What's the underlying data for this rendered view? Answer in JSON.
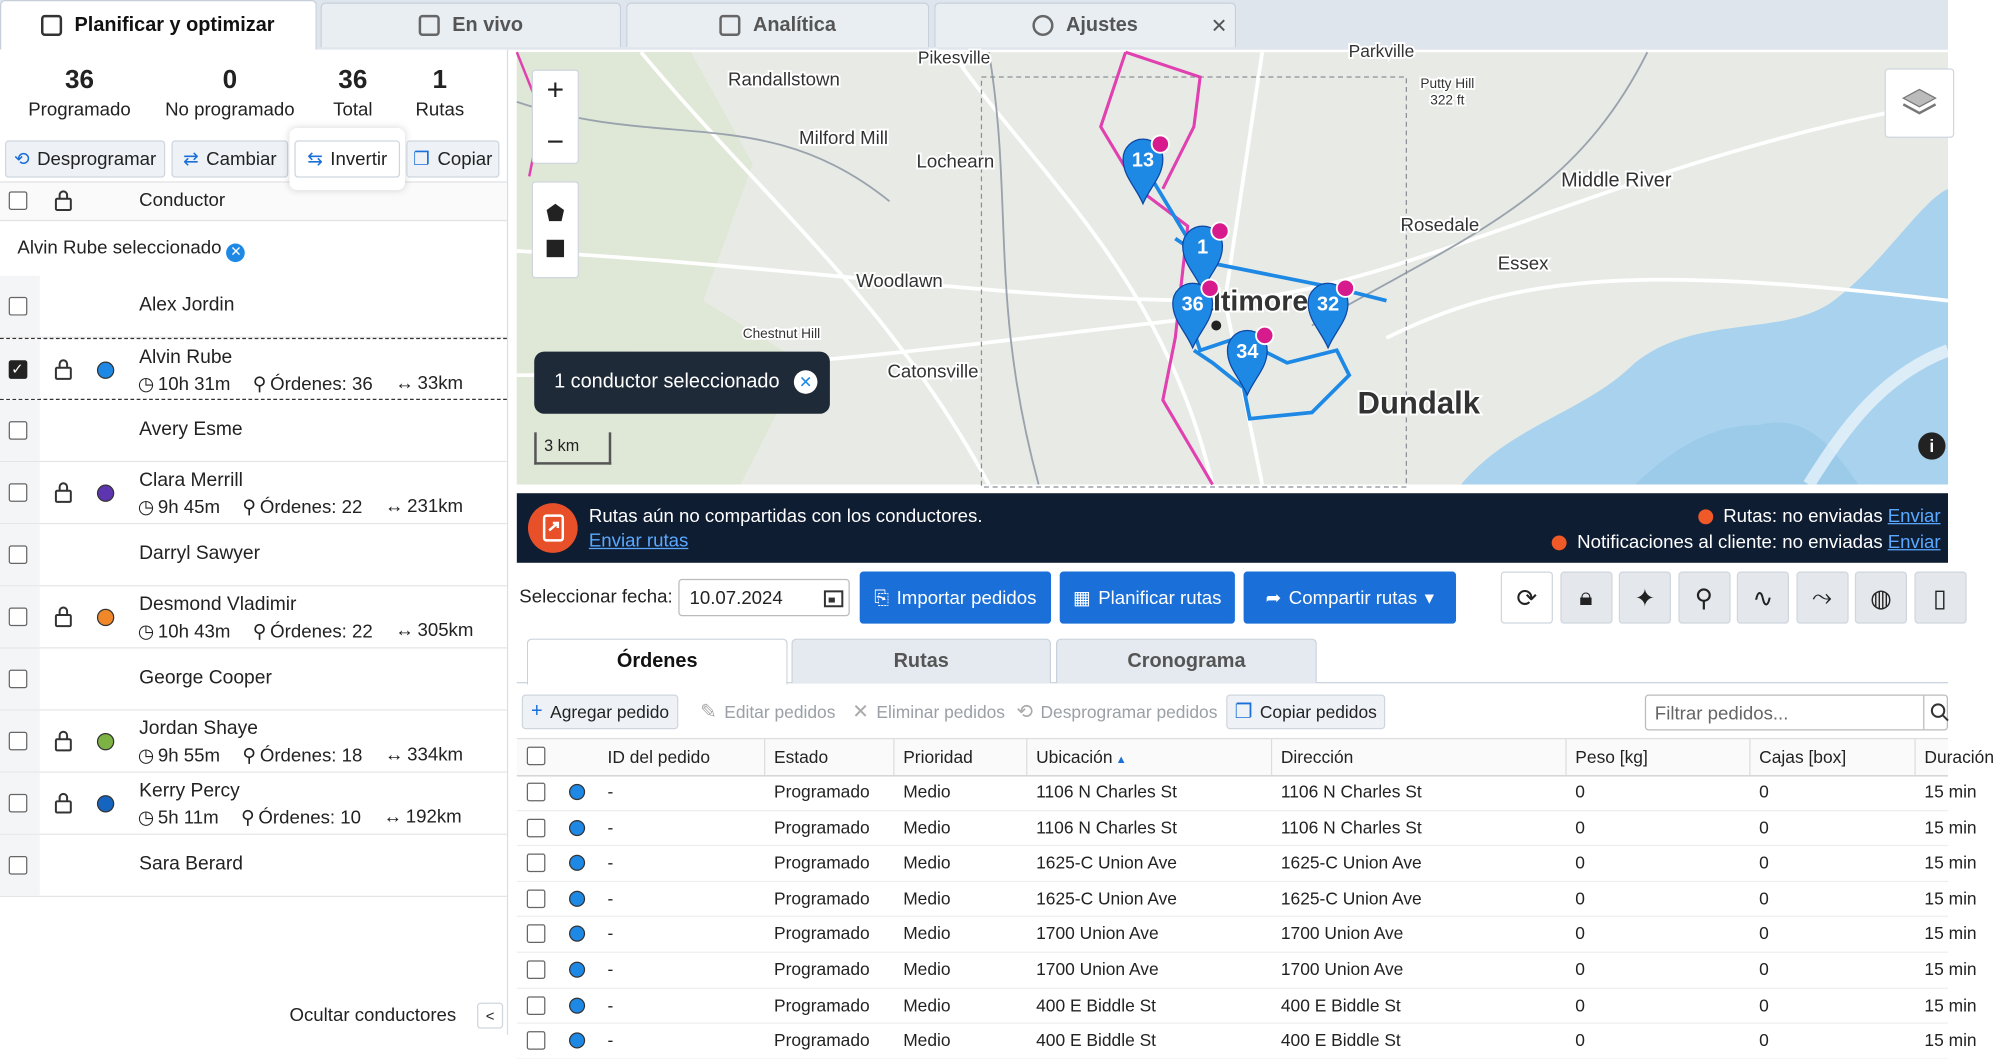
{
  "tabs": [
    "Planificar y optimizar",
    "En vivo",
    "Analítica",
    "Ajustes"
  ],
  "stats": [
    {
      "value": 36,
      "label": "Programado"
    },
    {
      "value": 0,
      "label": "No programado"
    },
    {
      "value": 36,
      "label": "Total"
    },
    {
      "value": 1,
      "label": "Rutas"
    }
  ],
  "actions": [
    "Desprogramar",
    "Cambiar",
    "Invertir",
    "Copiar"
  ],
  "driver_header": "Conductor",
  "selection_note": "Alvin Rube seleccionado",
  "drivers": [
    {
      "name": "Alex Jordin"
    },
    {
      "name": "Alvin Rube",
      "checked": true,
      "color": "#1e88e5",
      "time": "10h 31m",
      "orders": "Órdenes: 36",
      "distance": "33km"
    },
    {
      "name": "Avery Esme"
    },
    {
      "name": "Clara Merrill",
      "color": "#5e35b1",
      "time": "9h 45m",
      "orders": "Órdenes: 22",
      "distance": "231km"
    },
    {
      "name": "Darryl Sawyer"
    },
    {
      "name": "Desmond Vladimir",
      "color": "#f0882a",
      "time": "10h 43m",
      "orders": "Órdenes: 22",
      "distance": "305km"
    },
    {
      "name": "George Cooper"
    },
    {
      "name": "Jordan Shaye",
      "color": "#7cb342",
      "time": "9h 55m",
      "orders": "Órdenes: 18",
      "distance": "334km"
    },
    {
      "name": "Kerry Percy",
      "color": "#1565c0",
      "time": "5h 11m",
      "orders": "Órdenes: 10",
      "distance": "192km"
    },
    {
      "name": "Sara Berard"
    }
  ],
  "footer": "Ocultar conductores",
  "map": {
    "places": [
      "Pikesville",
      "Randallstown",
      "Milford Mill",
      "Lochearn",
      "Woodlawn",
      "Catonsville",
      "Chestnut Hill",
      "Rosedale",
      "Middle River",
      "Essex",
      "Baltimore",
      "Dundalk",
      "Parkville",
      "Putty Hill",
      "322 ft"
    ],
    "markers": [
      "13",
      "1",
      "36",
      "34",
      "32"
    ],
    "scale": "3 km",
    "tooltip": "1 conductor seleccionado"
  },
  "banner": {
    "message": "Rutas aún no compartidas con los conductores.",
    "link": "Enviar rutas",
    "statuses": [
      {
        "text": "Rutas: no enviadas",
        "action": "Enviar"
      },
      {
        "text": "Notificaciones al cliente: no enviadas",
        "action": "Enviar"
      }
    ]
  },
  "toolbar": {
    "date_label": "Seleccionar fecha:",
    "date": "10.07.2024",
    "buttons": [
      "Importar pedidos",
      "Planificar rutas",
      "Compartir rutas"
    ]
  },
  "subtabs": [
    "Órdenes",
    "Rutas",
    "Cronograma"
  ],
  "order_actions": [
    "Agregar pedido",
    "Editar pedidos",
    "Eliminar pedidos",
    "Desprogramar pedidos",
    "Copiar pedidos"
  ],
  "filter_placeholder": "Filtrar pedidos...",
  "table": {
    "columns": [
      "ID del pedido",
      "Estado",
      "Prioridad",
      "Ubicación",
      "Dirección",
      "Peso [kg]",
      "Cajas [box]",
      "Duración"
    ],
    "rows": [
      [
        "-",
        "Programado",
        "Medio",
        "1106 N Charles St",
        "1106 N Charles St",
        "0",
        "0",
        "15 min"
      ],
      [
        "-",
        "Programado",
        "Medio",
        "1106 N Charles St",
        "1106 N Charles St",
        "0",
        "0",
        "15 min"
      ],
      [
        "-",
        "Programado",
        "Medio",
        "1625-C Union Ave",
        "1625-C Union Ave",
        "0",
        "0",
        "15 min"
      ],
      [
        "-",
        "Programado",
        "Medio",
        "1625-C Union Ave",
        "1625-C Union Ave",
        "0",
        "0",
        "15 min"
      ],
      [
        "-",
        "Programado",
        "Medio",
        "1700 Union Ave",
        "1700 Union Ave",
        "0",
        "0",
        "15 min"
      ],
      [
        "-",
        "Programado",
        "Medio",
        "1700 Union Ave",
        "1700 Union Ave",
        "0",
        "0",
        "15 min"
      ],
      [
        "-",
        "Programado",
        "Medio",
        "400 E Biddle St",
        "400 E Biddle St",
        "0",
        "0",
        "15 min"
      ],
      [
        "-",
        "Programado",
        "Medio",
        "400 E Biddle St",
        "400 E Biddle St",
        "0",
        "0",
        "15 min"
      ]
    ]
  }
}
